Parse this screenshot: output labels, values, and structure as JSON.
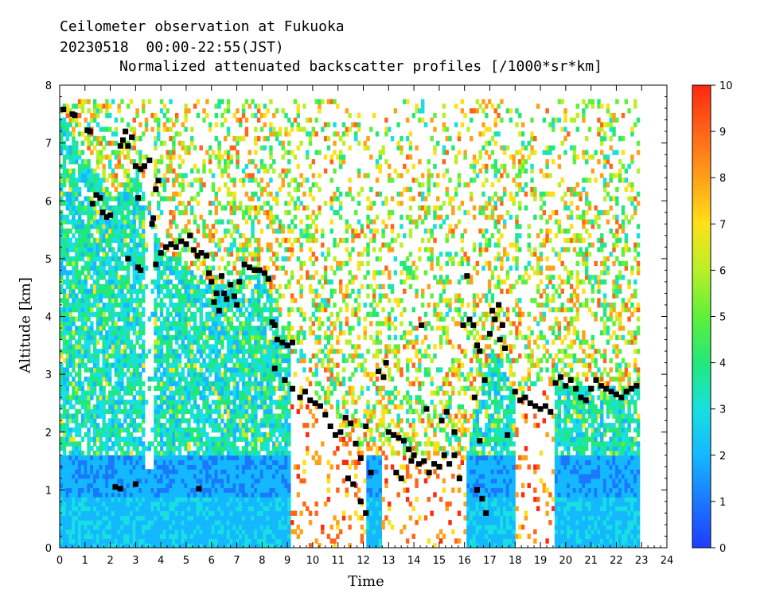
{
  "header": {
    "line1": "Ceilometer observation at Fukuoka",
    "line2": "20230518  00:00-22:55(JST)",
    "subtitle": "Normalized attenuated backscatter profiles [/1000*sr*km]"
  },
  "chart_data": {
    "type": "heatmap",
    "title": "Normalized attenuated backscatter profiles [/1000*sr*km]",
    "xlabel": "Time",
    "ylabel": "Altitude [km]",
    "xlim": [
      0,
      24
    ],
    "ylim": [
      0,
      8
    ],
    "x_ticks": [
      "0",
      "1",
      "2",
      "3",
      "4",
      "5",
      "6",
      "7",
      "8",
      "9",
      "10",
      "11",
      "12",
      "13",
      "14",
      "15",
      "16",
      "17",
      "18",
      "19",
      "20",
      "21",
      "22",
      "23",
      "24"
    ],
    "y_ticks": [
      "0",
      "1",
      "2",
      "3",
      "4",
      "5",
      "6",
      "7",
      "8"
    ],
    "colorbar": {
      "range": [
        0,
        10
      ],
      "ticks": [
        "0",
        "1",
        "2",
        "3",
        "4",
        "5",
        "6",
        "7",
        "8",
        "9",
        "10"
      ],
      "colors": [
        "#1f3cff",
        "#1a78ff",
        "#14b8ff",
        "#18e0e0",
        "#22e87a",
        "#5ef03a",
        "#b8f028",
        "#ffe018",
        "#ffa018",
        "#ff6418",
        "#ff2810"
      ]
    },
    "data_extent_hours": [
      0,
      22.92
    ],
    "data_top_km": 7.7,
    "cloud_base_points": [
      [
        0.15,
        7.58
      ],
      [
        0.5,
        7.5
      ],
      [
        0.6,
        7.48
      ],
      [
        1.1,
        7.22
      ],
      [
        1.2,
        7.2
      ],
      [
        1.3,
        5.95
      ],
      [
        1.45,
        6.1
      ],
      [
        1.6,
        6.05
      ],
      [
        1.7,
        5.8
      ],
      [
        1.85,
        5.72
      ],
      [
        2.0,
        5.75
      ],
      [
        2.4,
        6.95
      ],
      [
        2.5,
        7.05
      ],
      [
        2.6,
        7.2
      ],
      [
        2.7,
        6.95
      ],
      [
        2.85,
        7.1
      ],
      [
        3.0,
        6.6
      ],
      [
        3.1,
        6.05
      ],
      [
        3.2,
        6.55
      ],
      [
        3.35,
        6.6
      ],
      [
        3.55,
        6.7
      ],
      [
        3.7,
        5.7
      ],
      [
        3.8,
        6.2
      ],
      [
        3.9,
        6.35
      ],
      [
        2.7,
        5.0
      ],
      [
        3.1,
        4.85
      ],
      [
        3.2,
        4.8
      ],
      [
        3.65,
        5.6
      ],
      [
        3.8,
        4.9
      ],
      [
        4.0,
        5.1
      ],
      [
        4.2,
        5.2
      ],
      [
        4.4,
        5.25
      ],
      [
        4.6,
        5.2
      ],
      [
        4.8,
        5.3
      ],
      [
        5.0,
        5.25
      ],
      [
        5.15,
        5.4
      ],
      [
        5.3,
        5.15
      ],
      [
        5.45,
        5.05
      ],
      [
        5.6,
        5.1
      ],
      [
        5.8,
        5.05
      ],
      [
        5.9,
        4.75
      ],
      [
        6.0,
        4.6
      ],
      [
        6.1,
        4.25
      ],
      [
        6.2,
        4.4
      ],
      [
        6.3,
        4.1
      ],
      [
        6.4,
        4.7
      ],
      [
        6.5,
        4.4
      ],
      [
        6.6,
        4.3
      ],
      [
        6.75,
        4.55
      ],
      [
        6.9,
        4.35
      ],
      [
        7.0,
        4.2
      ],
      [
        7.1,
        4.6
      ],
      [
        7.3,
        4.9
      ],
      [
        7.5,
        4.85
      ],
      [
        7.7,
        4.8
      ],
      [
        7.9,
        4.8
      ],
      [
        8.1,
        4.75
      ],
      [
        8.25,
        4.65
      ],
      [
        8.4,
        3.9
      ],
      [
        8.5,
        3.85
      ],
      [
        8.6,
        3.6
      ],
      [
        8.8,
        3.55
      ],
      [
        9.0,
        3.5
      ],
      [
        9.2,
        3.55
      ],
      [
        8.5,
        3.1
      ],
      [
        8.9,
        2.9
      ],
      [
        9.2,
        2.75
      ],
      [
        9.5,
        2.6
      ],
      [
        9.7,
        2.7
      ],
      [
        9.9,
        2.55
      ],
      [
        10.1,
        2.5
      ],
      [
        10.3,
        2.45
      ],
      [
        10.5,
        2.3
      ],
      [
        10.7,
        2.1
      ],
      [
        10.9,
        1.95
      ],
      [
        11.1,
        2.0
      ],
      [
        11.3,
        2.25
      ],
      [
        11.5,
        2.15
      ],
      [
        11.7,
        1.8
      ],
      [
        11.9,
        1.55
      ],
      [
        12.1,
        2.1
      ],
      [
        11.4,
        1.2
      ],
      [
        11.6,
        1.1
      ],
      [
        11.9,
        0.8
      ],
      [
        12.1,
        0.6
      ],
      [
        12.3,
        1.3
      ],
      [
        12.6,
        3.05
      ],
      [
        12.8,
        2.95
      ],
      [
        12.9,
        3.2
      ],
      [
        13.0,
        2.0
      ],
      [
        13.2,
        1.95
      ],
      [
        13.4,
        1.9
      ],
      [
        13.6,
        1.85
      ],
      [
        13.8,
        1.7
      ],
      [
        14.0,
        1.6
      ],
      [
        14.2,
        1.45
      ],
      [
        13.3,
        1.3
      ],
      [
        13.5,
        1.2
      ],
      [
        13.9,
        1.5
      ],
      [
        14.4,
        1.5
      ],
      [
        14.6,
        1.3
      ],
      [
        14.8,
        1.45
      ],
      [
        15.0,
        1.4
      ],
      [
        15.2,
        1.6
      ],
      [
        15.4,
        1.45
      ],
      [
        15.6,
        1.6
      ],
      [
        15.8,
        1.2
      ],
      [
        14.3,
        3.85
      ],
      [
        14.5,
        2.4
      ],
      [
        15.1,
        2.2
      ],
      [
        15.3,
        2.35
      ],
      [
        15.6,
        2.0
      ],
      [
        15.95,
        3.85
      ],
      [
        16.1,
        4.7
      ],
      [
        16.2,
        3.95
      ],
      [
        16.35,
        3.85
      ],
      [
        16.5,
        3.5
      ],
      [
        16.6,
        3.4
      ],
      [
        16.8,
        2.9
      ],
      [
        16.4,
        2.6
      ],
      [
        16.6,
        1.85
      ],
      [
        16.7,
        0.85
      ],
      [
        16.85,
        0.6
      ],
      [
        16.5,
        1.0
      ],
      [
        17.0,
        3.7
      ],
      [
        17.1,
        4.1
      ],
      [
        17.2,
        3.95
      ],
      [
        17.35,
        4.2
      ],
      [
        17.5,
        3.85
      ],
      [
        17.6,
        3.45
      ],
      [
        17.4,
        3.6
      ],
      [
        17.7,
        1.95
      ],
      [
        18.0,
        2.7
      ],
      [
        18.2,
        2.55
      ],
      [
        18.4,
        2.6
      ],
      [
        18.6,
        2.5
      ],
      [
        18.8,
        2.45
      ],
      [
        19.0,
        2.4
      ],
      [
        19.2,
        2.45
      ],
      [
        19.4,
        2.35
      ],
      [
        19.6,
        2.85
      ],
      [
        19.8,
        2.95
      ],
      [
        20.0,
        2.8
      ],
      [
        20.2,
        2.9
      ],
      [
        20.4,
        2.75
      ],
      [
        20.6,
        2.6
      ],
      [
        20.8,
        2.55
      ],
      [
        21.0,
        2.75
      ],
      [
        21.2,
        2.9
      ],
      [
        21.4,
        2.8
      ],
      [
        21.6,
        2.75
      ],
      [
        21.8,
        2.7
      ],
      [
        22.0,
        2.65
      ],
      [
        22.2,
        2.6
      ],
      [
        22.4,
        2.7
      ],
      [
        22.6,
        2.75
      ],
      [
        22.8,
        2.8
      ],
      [
        2.2,
        1.05
      ],
      [
        2.4,
        1.02
      ],
      [
        3.0,
        1.1
      ],
      [
        5.5,
        1.02
      ]
    ]
  }
}
